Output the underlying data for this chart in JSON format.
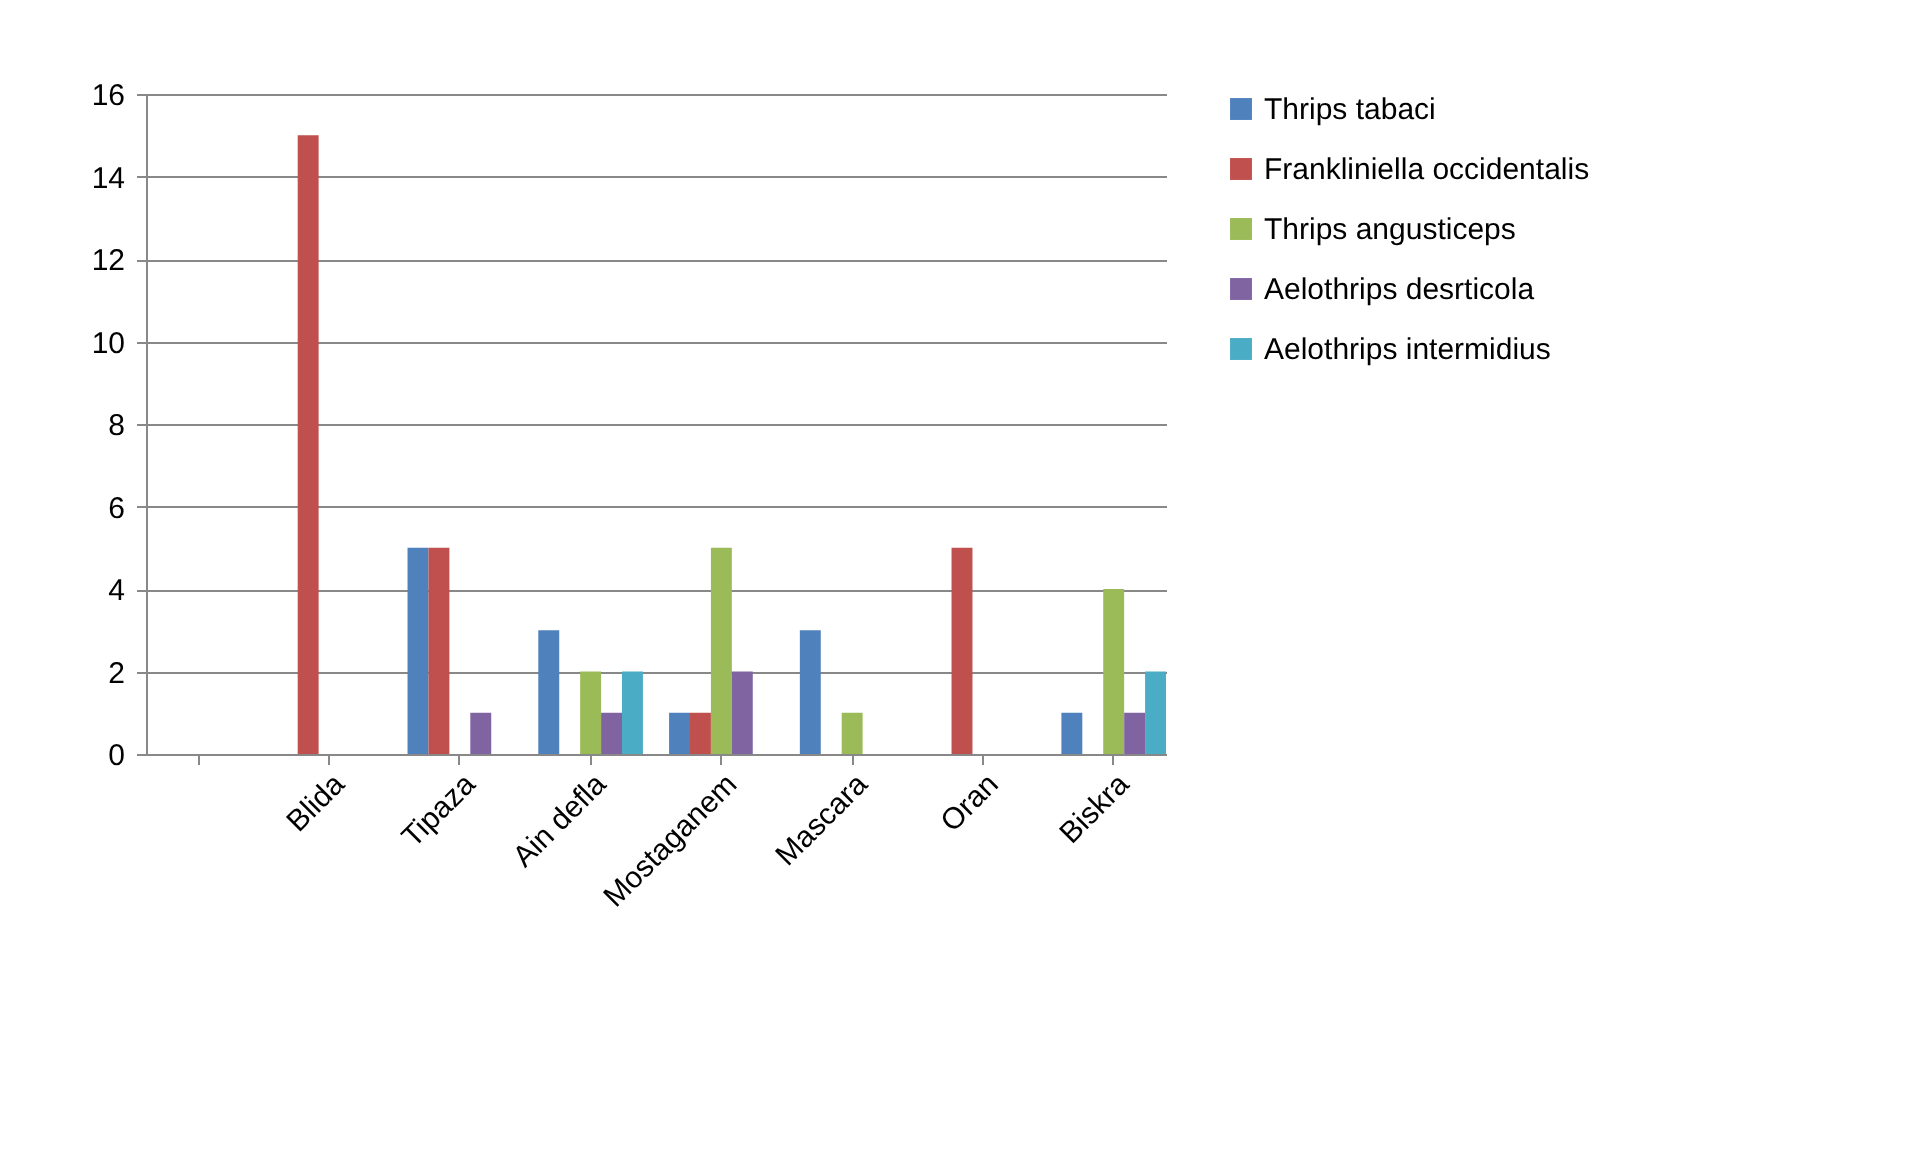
{
  "chart_data": {
    "type": "bar",
    "categories": [
      null,
      "Blida",
      "Tipaza",
      "Ain defla",
      "Mostaganem",
      "Mascara",
      "Oran",
      "Biskra"
    ],
    "series": [
      {
        "name": "Thrips tabaci",
        "color": "#4f81bd",
        "values": [
          null,
          0,
          5,
          3,
          1,
          3,
          0,
          1
        ]
      },
      {
        "name": "Frankliniella occidentalis",
        "color": "#c0504d",
        "values": [
          null,
          15,
          5,
          0,
          1,
          0,
          5,
          0
        ]
      },
      {
        "name": "Thrips angusticeps",
        "color": "#9bbb59",
        "values": [
          null,
          0,
          0,
          2,
          5,
          1,
          0,
          4
        ]
      },
      {
        "name": "Aelothrips desrticola",
        "color": "#8064a2",
        "values": [
          null,
          0,
          1,
          1,
          2,
          0,
          0,
          1
        ]
      },
      {
        "name": "Aelothrips intermidius",
        "color": "#4bacc6",
        "values": [
          null,
          0,
          0,
          2,
          0,
          0,
          0,
          2
        ]
      }
    ],
    "ylim": [
      0,
      16
    ],
    "yticks": [
      0,
      2,
      4,
      6,
      8,
      10,
      12,
      14,
      16
    ],
    "grid": "y",
    "legend": "right"
  }
}
